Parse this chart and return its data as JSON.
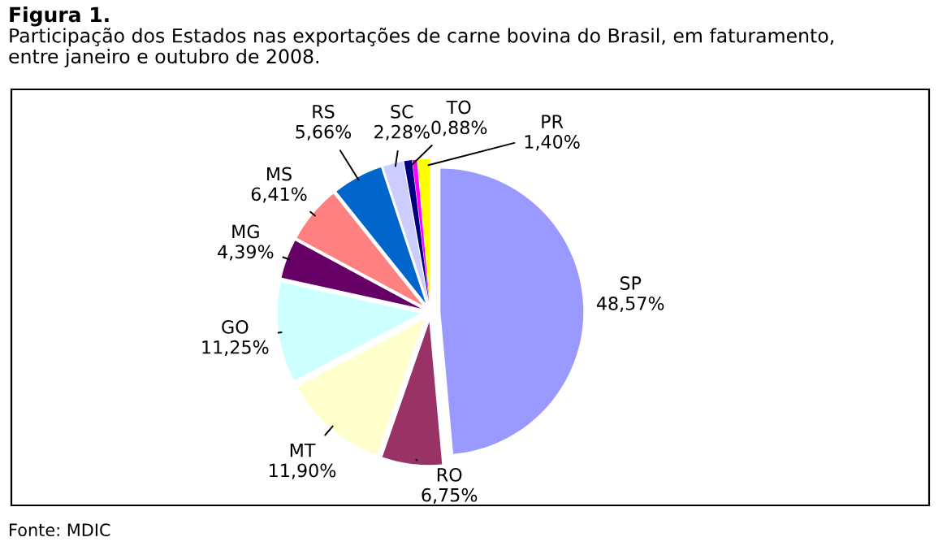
{
  "chart_data": {
    "type": "pie",
    "title": "Figura 1.",
    "subtitle": "Participação dos Estados nas exportações de carne bovina do Brasil, em faturamento,\nentre janeiro e outubro de 2008.",
    "categories": [
      "SP",
      "RO",
      "MT",
      "GO",
      "MG",
      "MS",
      "RS",
      "SC",
      "TO",
      null,
      "PR"
    ],
    "values": [
      48.57,
      6.75,
      11.9,
      11.25,
      4.39,
      6.41,
      5.66,
      2.28,
      0.88,
      0.51,
      1.4
    ],
    "value_labels": [
      "48,57%",
      "6,75%",
      "11,90%",
      "11,25%",
      "4,39%",
      "6,41%",
      "5,66%",
      "2,28%",
      "0,88%",
      null,
      "1,40%"
    ],
    "colors": [
      "#9999ff",
      "#993366",
      "#ffffcc",
      "#ccffff",
      "#660066",
      "#ff8080",
      "#0066cc",
      "#ccccff",
      "#000080",
      "#ff00ff",
      "#ffff00"
    ],
    "annotations": [
      "Fonte: MDIC"
    ]
  }
}
